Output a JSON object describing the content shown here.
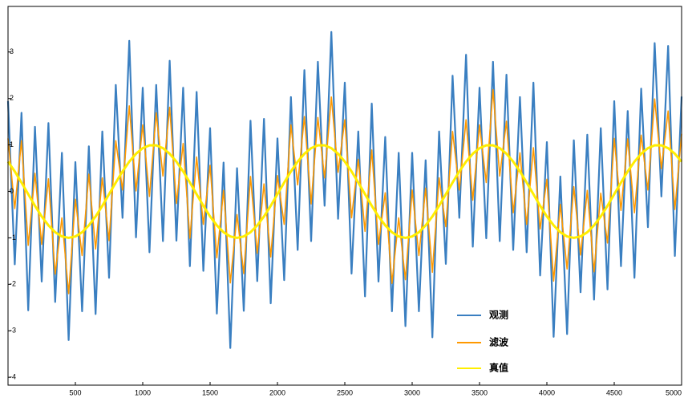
{
  "chart_data": {
    "type": "line",
    "x": [
      0,
      50,
      100,
      150,
      200,
      250,
      300,
      350,
      400,
      450,
      500,
      550,
      600,
      650,
      700,
      750,
      800,
      850,
      900,
      950,
      1000,
      1050,
      1100,
      1150,
      1200,
      1250,
      1300,
      1350,
      1400,
      1450,
      1500,
      1550,
      1600,
      1650,
      1700,
      1750,
      1800,
      1850,
      1900,
      1950,
      2000,
      2050,
      2100,
      2150,
      2200,
      2250,
      2300,
      2350,
      2400,
      2450,
      2500,
      2550,
      2600,
      2650,
      2700,
      2750,
      2800,
      2850,
      2900,
      2950,
      3000,
      3050,
      3100,
      3150,
      3200,
      3250,
      3300,
      3350,
      3400,
      3450,
      3500,
      3550,
      3600,
      3650,
      3700,
      3750,
      3800,
      3850,
      3900,
      3950,
      4000,
      4050,
      4100,
      4150,
      4200,
      4250,
      4300,
      4350,
      4400,
      4450,
      4500,
      4550,
      4600,
      4650,
      4700,
      4750,
      4800,
      4850,
      4900,
      4950,
      5000
    ],
    "series": [
      {
        "name": "观测",
        "color": "#3a7fc1",
        "values": [
          1.94,
          -1.57,
          1.69,
          -2.56,
          1.39,
          -1.94,
          1.47,
          -2.38,
          0.83,
          -3.2,
          0.63,
          -2.58,
          0.97,
          -2.64,
          1.29,
          -1.86,
          2.29,
          -0.57,
          3.24,
          -0.99,
          2.23,
          -1.31,
          2.29,
          -1.07,
          2.81,
          -1.06,
          2.23,
          -1.61,
          2.14,
          -1.71,
          1.36,
          -2.63,
          0.62,
          -3.37,
          0.5,
          -2.57,
          1.52,
          -1.93,
          1.56,
          -2.41,
          1.14,
          -1.91,
          2.03,
          -1.26,
          2.61,
          -1.07,
          2.79,
          -0.31,
          3.43,
          -0.59,
          2.34,
          -1.77,
          1.29,
          -2.26,
          1.89,
          -1.94,
          1.17,
          -2.58,
          0.83,
          -2.9,
          0.83,
          -2.58,
          0.67,
          -3.14,
          1.29,
          -1.56,
          2.49,
          -0.57,
          2.94,
          -1.19,
          2.23,
          -1.01,
          2.79,
          -1.07,
          2.51,
          -1.26,
          2.03,
          -1.31,
          2.34,
          -1.81,
          1.06,
          -3.13,
          0.32,
          -3.07,
          1.1,
          -2.17,
          1.22,
          -2.33,
          1.36,
          -2.11,
          1.94,
          -1.61,
          1.73,
          -1.86,
          2.21,
          -0.77,
          3.19,
          -0.11,
          3.13,
          -1.39,
          2.04
        ]
      },
      {
        "name": "滤波",
        "color": "#ff9900",
        "values": [
          1.14,
          -0.37,
          1.09,
          -1.16,
          0.39,
          -1.14,
          0.27,
          -1.78,
          -0.57,
          -2.2,
          -0.17,
          -1.38,
          0.37,
          -1.24,
          0.29,
          -1.06,
          1.09,
          0.03,
          1.84,
          0.01,
          1.43,
          -0.11,
          1.69,
          0.33,
          1.81,
          -0.26,
          1.03,
          -1.01,
          0.74,
          -0.71,
          0.56,
          -1.43,
          0.02,
          -1.97,
          -0.5,
          -1.77,
          0.32,
          -1.33,
          0.16,
          -1.41,
          0.34,
          -0.71,
          1.43,
          0.14,
          1.61,
          -0.27,
          1.59,
          0.29,
          2.03,
          0.41,
          1.54,
          -0.57,
          0.69,
          -0.86,
          0.89,
          -1.14,
          -0.03,
          -1.98,
          -0.57,
          -1.9,
          0.03,
          -1.38,
          0.07,
          -1.74,
          0.29,
          -0.76,
          1.29,
          0.03,
          1.54,
          -0.19,
          1.43,
          0.19,
          2.19,
          0.33,
          1.51,
          -0.46,
          0.83,
          -0.71,
          0.94,
          -0.81,
          0.26,
          -1.93,
          -0.28,
          -1.67,
          0.1,
          -1.37,
          0.02,
          -1.73,
          -0.04,
          -1.11,
          1.14,
          -0.41,
          1.13,
          -0.46,
          1.21,
          0.03,
          1.99,
          0.49,
          1.73,
          -0.39,
          1.24
        ]
      },
      {
        "name": "真值",
        "color": "#ffee00",
        "values": [
          0.64,
          0.43,
          0.19,
          -0.06,
          -0.31,
          -0.54,
          -0.73,
          -0.88,
          -0.97,
          -1.0,
          -0.97,
          -0.88,
          -0.73,
          -0.54,
          -0.31,
          -0.06,
          0.19,
          0.43,
          0.64,
          0.81,
          0.93,
          0.99,
          0.99,
          0.93,
          0.81,
          0.64,
          0.43,
          0.19,
          -0.06,
          -0.31,
          -0.54,
          -0.73,
          -0.88,
          -0.97,
          -1.0,
          -0.97,
          -0.88,
          -0.73,
          -0.54,
          -0.31,
          -0.06,
          0.19,
          0.43,
          0.64,
          0.81,
          0.93,
          0.99,
          0.99,
          0.93,
          0.81,
          0.64,
          0.43,
          0.19,
          -0.06,
          -0.31,
          -0.54,
          -0.73,
          -0.88,
          -0.97,
          -1.0,
          -0.97,
          -0.88,
          -0.73,
          -0.54,
          -0.31,
          -0.06,
          0.19,
          0.43,
          0.64,
          0.81,
          0.93,
          0.99,
          0.99,
          0.93,
          0.81,
          0.64,
          0.43,
          0.19,
          -0.06,
          -0.31,
          -0.54,
          -0.73,
          -0.88,
          -0.97,
          -1.0,
          -0.97,
          -0.88,
          -0.73,
          -0.54,
          -0.31,
          -0.06,
          0.19,
          0.43,
          0.64,
          0.81,
          0.93,
          0.99,
          0.99,
          0.93,
          0.81,
          0.64
        ]
      }
    ],
    "xlim": [
      0,
      5000
    ],
    "xticks": [
      500,
      1000,
      1500,
      2000,
      2500,
      3000,
      3500,
      4000,
      4500,
      5000
    ],
    "ylim": [
      -4.17,
      3.98
    ],
    "yticks": [
      -4,
      -3,
      -2,
      -1,
      0,
      1,
      2,
      3
    ],
    "legend": "lower-right"
  }
}
